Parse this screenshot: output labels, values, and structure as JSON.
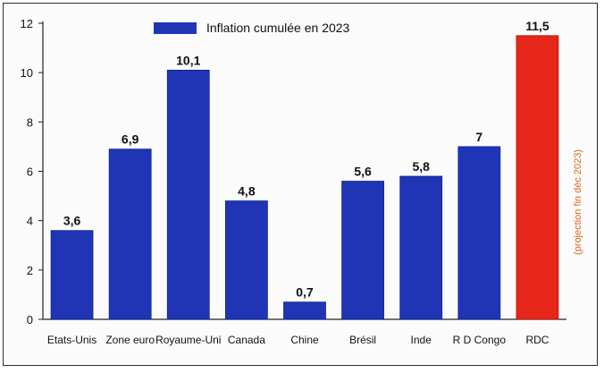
{
  "chart_data": {
    "type": "bar",
    "categories": [
      "Etats-Unis",
      "Zone euro",
      "Royaume-Uni",
      "Canada",
      "Chine",
      "Brésil",
      "Inde",
      "R D Congo",
      "RDC"
    ],
    "series": [
      {
        "name": "Inflation cumulée en 2023",
        "values": [
          3.6,
          6.9,
          10.1,
          4.8,
          0.7,
          5.6,
          5.8,
          7,
          11.5
        ]
      }
    ],
    "value_labels": [
      "3,6",
      "6,9",
      "10,1",
      "4,8",
      "0,7",
      "5,6",
      "5,8",
      "7",
      "11,5"
    ],
    "title": "",
    "xlabel": "",
    "ylabel": "",
    "ylim": [
      0,
      12
    ],
    "yticks": [
      0,
      2,
      4,
      6,
      8,
      10,
      12
    ],
    "grid": false,
    "legend_position": "top",
    "annotation": "(projection fin déc 2023)",
    "colors": {
      "bar": "#1f35b5",
      "highlight_bar": "#e52619",
      "highlight_label": "#e0641e",
      "annotation": "#e0641e"
    },
    "highlight_index": 8
  }
}
